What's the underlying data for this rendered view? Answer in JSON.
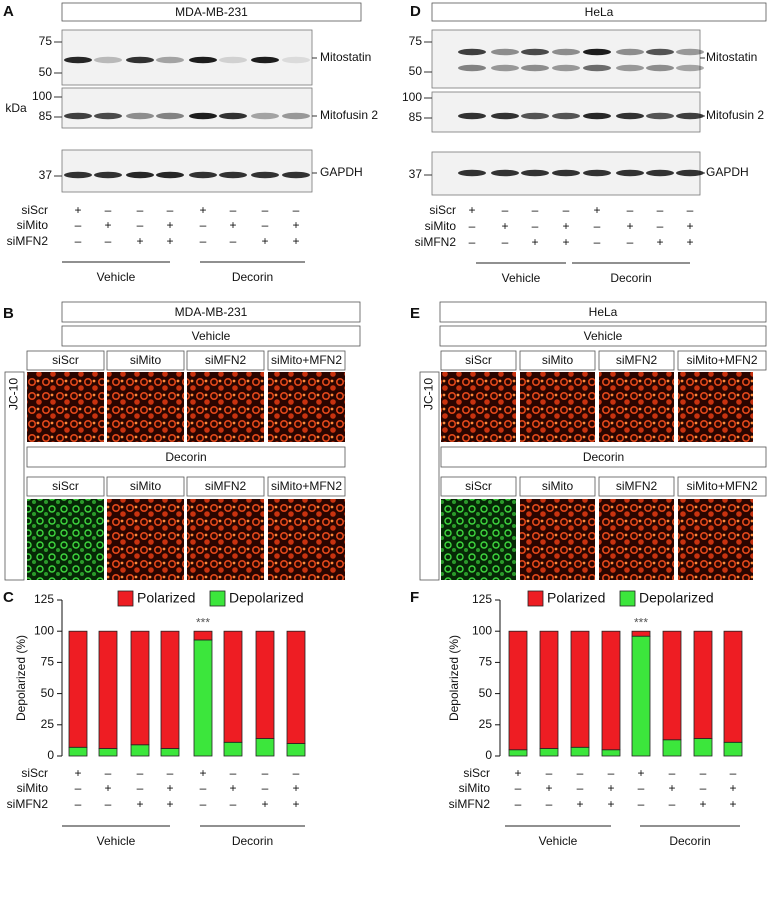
{
  "blots": [
    {
      "panel_label": "A",
      "title": "MDA-MB-231",
      "kda_label": "kDa",
      "rows": [
        {
          "name": "Mitostatin",
          "markers": [
            75,
            50
          ]
        },
        {
          "name": "Mitofusin 2",
          "markers": [
            100,
            85
          ]
        },
        {
          "name": "GAPDH",
          "markers": [
            37
          ]
        }
      ],
      "conditions": [
        {
          "label": "siScr",
          "signs": [
            "+",
            "–",
            "–",
            "–",
            "+",
            "–",
            "–",
            "–"
          ]
        },
        {
          "label": "siMito",
          "signs": [
            "–",
            "+",
            "–",
            "+",
            "–",
            "+",
            "–",
            "+"
          ]
        },
        {
          "label": "siMFN2",
          "signs": [
            "–",
            "–",
            "+",
            "+",
            "–",
            "–",
            "+",
            "+"
          ]
        }
      ],
      "groups": [
        "Vehicle",
        "Decorin"
      ]
    },
    {
      "panel_label": "D",
      "title": "HeLa",
      "rows": [
        {
          "name": "Mitostatin",
          "markers": [
            75,
            50
          ]
        },
        {
          "name": "Mitofusin 2",
          "markers": [
            100,
            85
          ]
        },
        {
          "name": "GAPDH",
          "markers": [
            37
          ]
        }
      ],
      "conditions": [
        {
          "label": "siScr",
          "signs": [
            "+",
            "–",
            "–",
            "–",
            "+",
            "–",
            "–",
            "–"
          ]
        },
        {
          "label": "siMito",
          "signs": [
            "–",
            "+",
            "–",
            "+",
            "–",
            "+",
            "–",
            "+"
          ]
        },
        {
          "label": "siMFN2",
          "signs": [
            "–",
            "–",
            "+",
            "+",
            "–",
            "–",
            "+",
            "+"
          ]
        }
      ],
      "groups": [
        "Vehicle",
        "Decorin"
      ]
    }
  ],
  "images": [
    {
      "panel_label": "B",
      "title": "MDA-MB-231",
      "y_label": "JC-10",
      "groups": [
        {
          "label": "Vehicle",
          "columns": [
            "siScr",
            "siMito",
            "siMFN2",
            "siMito+MFN2"
          ]
        },
        {
          "label": "Decorin",
          "columns": [
            "siScr",
            "siMito",
            "siMFN2",
            "siMito+MFN2"
          ]
        }
      ]
    },
    {
      "panel_label": "E",
      "title": "HeLa",
      "y_label": "JC-10",
      "groups": [
        {
          "label": "Vehicle",
          "columns": [
            "siScr",
            "siMito",
            "siMFN2",
            "siMito+MFN2"
          ]
        },
        {
          "label": "Decorin",
          "columns": [
            "siScr",
            "siMito",
            "siMFN2",
            "siMito+MFN2"
          ]
        }
      ]
    }
  ],
  "chart_data": [
    {
      "type": "stacked_bar",
      "panel_label": "C",
      "y_label": "Depolarized (%)",
      "ylim": [
        0,
        125
      ],
      "yticks": [
        0,
        25,
        50,
        75,
        100,
        125
      ],
      "series": [
        {
          "name": "Polarized",
          "color": "#ee1d23",
          "values": [
            93,
            94,
            91,
            94,
            7,
            89,
            86,
            90
          ]
        },
        {
          "name": "Depolarized",
          "color": "#3ce63c",
          "values": [
            7,
            6,
            9,
            6,
            93,
            11,
            14,
            10
          ]
        }
      ],
      "annotations": [
        {
          "text": "***",
          "x": 4
        }
      ],
      "conditions": [
        {
          "label": "siScr",
          "signs": [
            "+",
            "–",
            "–",
            "–",
            "+",
            "–",
            "–",
            "–"
          ]
        },
        {
          "label": "siMito",
          "signs": [
            "–",
            "+",
            "–",
            "+",
            "–",
            "+",
            "–",
            "+"
          ]
        },
        {
          "label": "siMFN2",
          "signs": [
            "–",
            "–",
            "+",
            "+",
            "–",
            "–",
            "+",
            "+"
          ]
        }
      ],
      "groups": [
        "Vehicle",
        "Decorin"
      ]
    },
    {
      "type": "stacked_bar",
      "panel_label": "F",
      "y_label": "Depolarized (%)",
      "ylim": [
        0,
        125
      ],
      "yticks": [
        0,
        25,
        50,
        75,
        100,
        125
      ],
      "series": [
        {
          "name": "Polarized",
          "color": "#ee1d23",
          "values": [
            95,
            94,
            93,
            95,
            4,
            87,
            86,
            89
          ]
        },
        {
          "name": "Depolarized",
          "color": "#3ce63c",
          "values": [
            5,
            6,
            7,
            5,
            96,
            13,
            14,
            11
          ]
        }
      ],
      "annotations": [
        {
          "text": "***",
          "x": 4
        }
      ],
      "conditions": [
        {
          "label": "siScr",
          "signs": [
            "+",
            "–",
            "–",
            "–",
            "+",
            "–",
            "–",
            "–"
          ]
        },
        {
          "label": "siMito",
          "signs": [
            "–",
            "+",
            "–",
            "+",
            "–",
            "+",
            "–",
            "+"
          ]
        },
        {
          "label": "siMFN2",
          "signs": [
            "–",
            "–",
            "+",
            "+",
            "–",
            "–",
            "+",
            "+"
          ]
        }
      ],
      "groups": [
        "Vehicle",
        "Decorin"
      ]
    }
  ]
}
